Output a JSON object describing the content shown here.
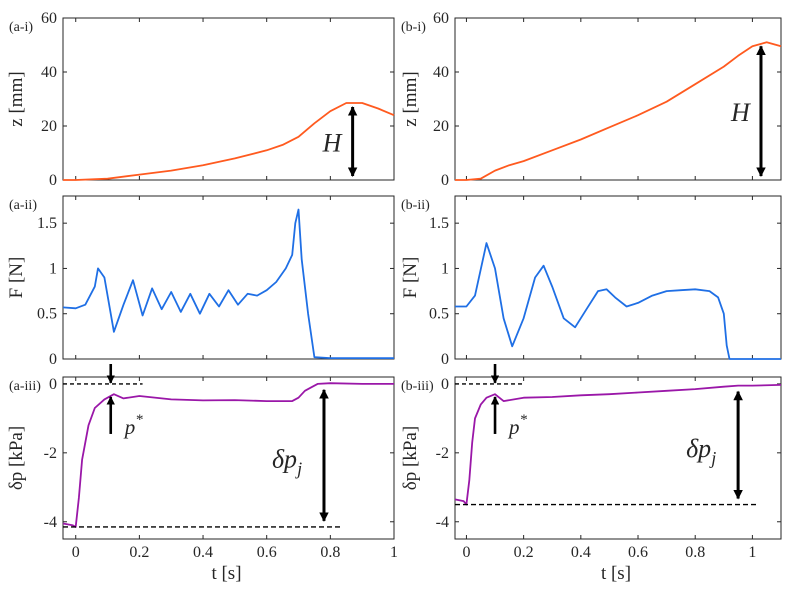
{
  "chart_data": [
    {
      "type": "line",
      "panel_label": "(a-i)",
      "ylabel": "z [mm]",
      "ylim": [
        0,
        60
      ],
      "xlim": [
        -0.04,
        1.0
      ],
      "yticks": [
        0,
        20,
        40,
        60
      ],
      "xticks": [
        0,
        0.2,
        0.4,
        0.6,
        0.8,
        1
      ],
      "xlabel": "",
      "color": "#ff5a1f",
      "series": [
        {
          "name": "z",
          "x": [
            -0.04,
            0.0,
            0.1,
            0.2,
            0.3,
            0.4,
            0.5,
            0.6,
            0.65,
            0.7,
            0.75,
            0.8,
            0.85,
            0.9,
            0.95,
            1.0
          ],
          "y": [
            0,
            0,
            0.5,
            2,
            3.5,
            5.5,
            8,
            11,
            13,
            16,
            21,
            25.5,
            28.5,
            28.5,
            26.5,
            24
          ]
        }
      ],
      "annotations": [
        {
          "text": "H",
          "x": 0.87,
          "y_from": 0,
          "y_to": 28.5
        }
      ]
    },
    {
      "type": "line",
      "panel_label": "(b-i)",
      "ylabel": "z [mm]",
      "ylim": [
        0,
        60
      ],
      "xlim": [
        -0.04,
        1.1
      ],
      "yticks": [
        0,
        20,
        40,
        60
      ],
      "xticks": [
        0,
        0.2,
        0.4,
        0.6,
        0.8,
        1
      ],
      "xlabel": "",
      "color": "#ff5a1f",
      "series": [
        {
          "name": "z",
          "x": [
            -0.04,
            0.0,
            0.05,
            0.1,
            0.15,
            0.2,
            0.3,
            0.4,
            0.5,
            0.6,
            0.7,
            0.8,
            0.9,
            0.95,
            1.0,
            1.05,
            1.1
          ],
          "y": [
            0,
            0,
            0.5,
            3.5,
            5.5,
            7,
            11,
            15,
            19.5,
            24,
            29,
            35.5,
            42,
            46,
            49.5,
            51,
            49.5
          ]
        }
      ],
      "annotations": [
        {
          "text": "H",
          "x": 1.03,
          "y_from": 0,
          "y_to": 51
        }
      ]
    },
    {
      "type": "line",
      "panel_label": "(a-ii)",
      "ylabel": "F [N]",
      "ylim": [
        0,
        1.8
      ],
      "xlim": [
        -0.04,
        1.0
      ],
      "yticks": [
        0,
        0.5,
        1,
        1.5
      ],
      "xticks": [
        0,
        0.2,
        0.4,
        0.6,
        0.8,
        1
      ],
      "xlabel": "",
      "color": "#1f6fe5",
      "series": [
        {
          "name": "F",
          "x": [
            -0.04,
            0.0,
            0.03,
            0.06,
            0.07,
            0.09,
            0.12,
            0.15,
            0.18,
            0.21,
            0.24,
            0.27,
            0.3,
            0.33,
            0.36,
            0.39,
            0.42,
            0.45,
            0.48,
            0.51,
            0.54,
            0.57,
            0.6,
            0.63,
            0.66,
            0.68,
            0.69,
            0.7,
            0.71,
            0.73,
            0.75,
            0.8,
            0.9,
            1.0
          ],
          "y": [
            0.57,
            0.56,
            0.6,
            0.8,
            1.0,
            0.9,
            0.3,
            0.6,
            0.87,
            0.48,
            0.78,
            0.55,
            0.74,
            0.52,
            0.72,
            0.5,
            0.72,
            0.58,
            0.76,
            0.6,
            0.72,
            0.7,
            0.76,
            0.85,
            1.0,
            1.15,
            1.5,
            1.65,
            1.1,
            0.5,
            0.02,
            0.01,
            0.01,
            0.01
          ]
        }
      ],
      "annotations": []
    },
    {
      "type": "line",
      "panel_label": "(b-ii)",
      "ylabel": "F [N]",
      "ylim": [
        0,
        1.8
      ],
      "xlim": [
        -0.04,
        1.1
      ],
      "yticks": [
        0,
        0.5,
        1,
        1.5
      ],
      "xticks": [
        0,
        0.2,
        0.4,
        0.6,
        0.8,
        1
      ],
      "xlabel": "",
      "color": "#1f6fe5",
      "series": [
        {
          "name": "F",
          "x": [
            -0.04,
            0.0,
            0.03,
            0.07,
            0.1,
            0.13,
            0.16,
            0.2,
            0.24,
            0.27,
            0.3,
            0.34,
            0.38,
            0.42,
            0.46,
            0.49,
            0.52,
            0.56,
            0.6,
            0.65,
            0.7,
            0.75,
            0.8,
            0.85,
            0.88,
            0.9,
            0.91,
            0.92,
            0.95,
            1.0,
            1.1
          ],
          "y": [
            0.58,
            0.58,
            0.7,
            1.28,
            1.0,
            0.45,
            0.14,
            0.45,
            0.9,
            1.03,
            0.8,
            0.45,
            0.35,
            0.55,
            0.75,
            0.77,
            0.68,
            0.58,
            0.62,
            0.7,
            0.75,
            0.76,
            0.77,
            0.75,
            0.68,
            0.5,
            0.15,
            0.0,
            0.0,
            0.0,
            0.0
          ]
        }
      ],
      "annotations": []
    },
    {
      "type": "line",
      "panel_label": "(a-iii)",
      "ylabel": "δp [kPa]",
      "ylim": [
        -4.5,
        0.2
      ],
      "xlim": [
        -0.04,
        1.0
      ],
      "yticks": [
        -4,
        -2,
        0
      ],
      "ytick_labels": [
        "-4",
        "-2",
        "0"
      ],
      "xticks": [
        0,
        0.2,
        0.4,
        0.6,
        0.8,
        1
      ],
      "xtick_labels": [
        "0",
        "0.2",
        "0.4",
        "0.6",
        "0.8",
        "1"
      ],
      "xlabel": "t [s]",
      "color": "#9a17a8",
      "series": [
        {
          "name": "δp",
          "x": [
            -0.04,
            -0.01,
            0.0,
            0.01,
            0.02,
            0.04,
            0.06,
            0.09,
            0.12,
            0.15,
            0.2,
            0.3,
            0.4,
            0.5,
            0.6,
            0.68,
            0.7,
            0.72,
            0.74,
            0.76,
            0.8,
            0.9,
            1.0
          ],
          "y": [
            -4.05,
            -4.1,
            -4.15,
            -3.3,
            -2.2,
            -1.2,
            -0.7,
            -0.45,
            -0.3,
            -0.42,
            -0.35,
            -0.45,
            -0.48,
            -0.47,
            -0.5,
            -0.5,
            -0.4,
            -0.2,
            -0.1,
            0.0,
            0.02,
            0.0,
            0.0
          ]
        }
      ],
      "annotations": [
        {
          "text": "p",
          "superscript": "*",
          "type": "gap",
          "x": 0.11,
          "level_high": 0.0,
          "level_low": -0.35
        },
        {
          "text": "δp",
          "subscript": "j",
          "type": "span",
          "x": 0.78,
          "y_from": 0.0,
          "y_to": -4.15
        }
      ]
    },
    {
      "type": "line",
      "panel_label": "(b-iii)",
      "ylabel": "δp [kPa]",
      "ylim": [
        -4.5,
        0.2
      ],
      "xlim": [
        -0.04,
        1.1
      ],
      "yticks": [
        -4,
        -2,
        0
      ],
      "ytick_labels": [
        "-4",
        "-2",
        "0"
      ],
      "xticks": [
        0,
        0.2,
        0.4,
        0.6,
        0.8,
        1
      ],
      "xtick_labels": [
        "0",
        "0.2",
        "0.4",
        "0.6",
        "0.8",
        "1"
      ],
      "xlabel": "t [s]",
      "color": "#9a17a8",
      "series": [
        {
          "name": "δp",
          "x": [
            -0.04,
            -0.01,
            0.0,
            0.01,
            0.02,
            0.03,
            0.05,
            0.07,
            0.1,
            0.13,
            0.2,
            0.3,
            0.4,
            0.5,
            0.6,
            0.7,
            0.8,
            0.9,
            0.95,
            1.0,
            1.1
          ],
          "y": [
            -3.35,
            -3.4,
            -3.5,
            -2.8,
            -1.7,
            -1.0,
            -0.6,
            -0.4,
            -0.3,
            -0.5,
            -0.4,
            -0.38,
            -0.33,
            -0.3,
            -0.25,
            -0.2,
            -0.15,
            -0.08,
            -0.05,
            -0.05,
            -0.03
          ]
        }
      ],
      "annotations": [
        {
          "text": "p",
          "superscript": "*",
          "type": "gap",
          "x": 0.1,
          "level_high": 0.0,
          "level_low": -0.35
        },
        {
          "text": "δp",
          "subscript": "j",
          "type": "span",
          "x": 0.95,
          "y_from": -0.05,
          "y_to": -3.5
        }
      ]
    }
  ]
}
